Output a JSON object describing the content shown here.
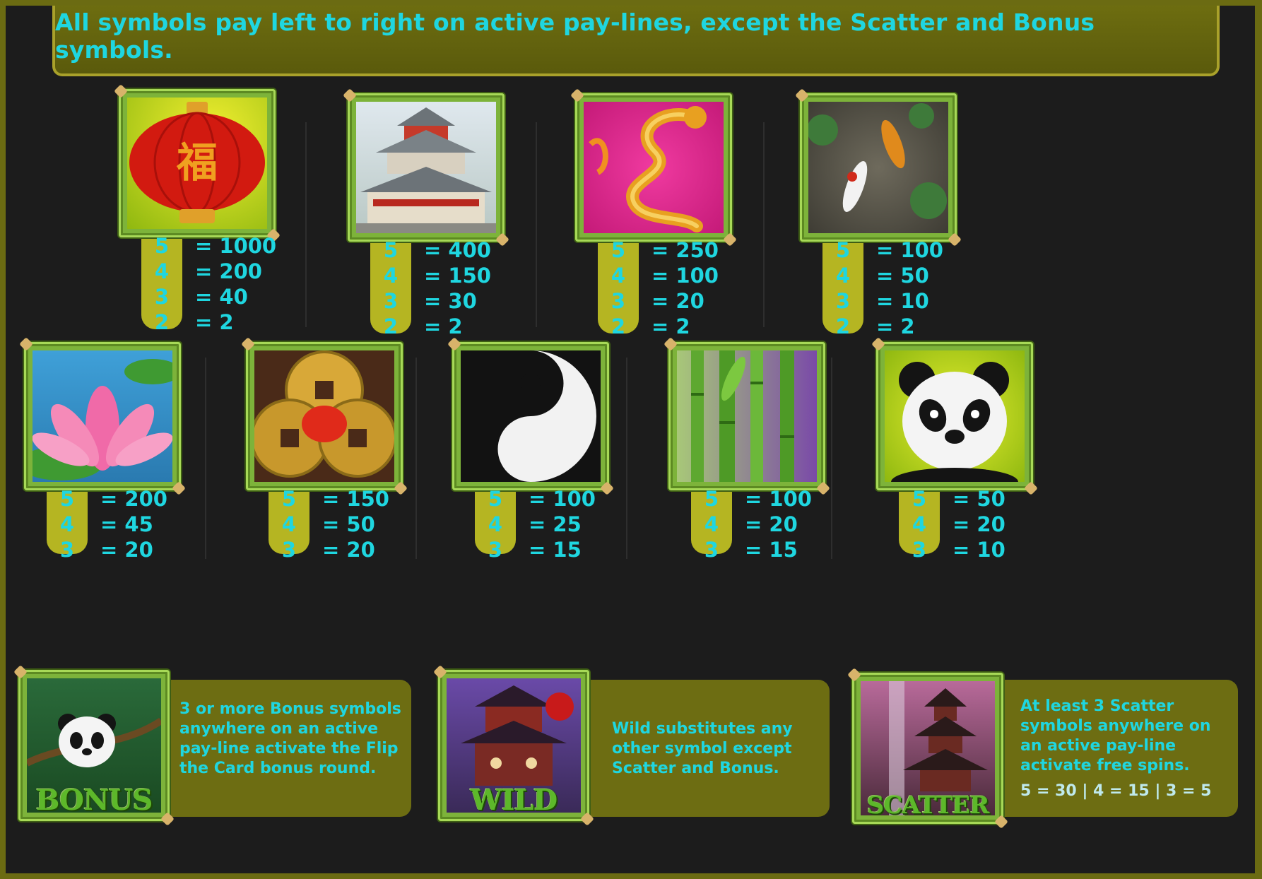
{
  "banner": {
    "text": "All symbols pay left to right on active pay-lines, except the Scatter and Bonus symbols."
  },
  "symbols": [
    {
      "name": "Lantern",
      "icon": "lantern-icon",
      "pays": [
        {
          "count": "5",
          "value": "= 1000"
        },
        {
          "count": "4",
          "value": "= 200"
        },
        {
          "count": "3",
          "value": "= 40"
        },
        {
          "count": "2",
          "value": "= 2"
        }
      ]
    },
    {
      "name": "Temple",
      "icon": "temple-icon",
      "pays": [
        {
          "count": "5",
          "value": "= 400"
        },
        {
          "count": "4",
          "value": "= 150"
        },
        {
          "count": "3",
          "value": "= 30"
        },
        {
          "count": "2",
          "value": "= 2"
        }
      ]
    },
    {
      "name": "Dragon",
      "icon": "dragon-icon",
      "pays": [
        {
          "count": "5",
          "value": "= 250"
        },
        {
          "count": "4",
          "value": "= 100"
        },
        {
          "count": "3",
          "value": "= 20"
        },
        {
          "count": "2",
          "value": "= 2"
        }
      ]
    },
    {
      "name": "Koi",
      "icon": "koi-fish-icon",
      "pays": [
        {
          "count": "5",
          "value": "= 100"
        },
        {
          "count": "4",
          "value": "= 50"
        },
        {
          "count": "3",
          "value": "= 10"
        },
        {
          "count": "2",
          "value": "= 2"
        }
      ]
    },
    {
      "name": "Lotus",
      "icon": "lotus-flower-icon",
      "pays": [
        {
          "count": "5",
          "value": "= 200"
        },
        {
          "count": "4",
          "value": "= 45"
        },
        {
          "count": "3",
          "value": "= 20"
        }
      ]
    },
    {
      "name": "Coins",
      "icon": "chinese-coins-icon",
      "pays": [
        {
          "count": "5",
          "value": "= 150"
        },
        {
          "count": "4",
          "value": "= 50"
        },
        {
          "count": "3",
          "value": "= 20"
        }
      ]
    },
    {
      "name": "Yin Yang",
      "icon": "yin-yang-icon",
      "pays": [
        {
          "count": "5",
          "value": "= 100"
        },
        {
          "count": "4",
          "value": "= 25"
        },
        {
          "count": "3",
          "value": "= 15"
        }
      ]
    },
    {
      "name": "Bamboo",
      "icon": "bamboo-icon",
      "pays": [
        {
          "count": "5",
          "value": "= 100"
        },
        {
          "count": "4",
          "value": "= 20"
        },
        {
          "count": "3",
          "value": "= 15"
        }
      ]
    },
    {
      "name": "Panda",
      "icon": "panda-icon",
      "pays": [
        {
          "count": "5",
          "value": "= 50"
        },
        {
          "count": "4",
          "value": "= 20"
        },
        {
          "count": "3",
          "value": "= 10"
        }
      ]
    }
  ],
  "specials": {
    "bonus": {
      "label": "BONUS",
      "text": "3 or more Bonus symbols anywhere on an active pay-line activate the Flip the Card bonus round."
    },
    "wild": {
      "label": "WILD",
      "text": "Wild substitutes any other symbol except Scatter and Bonus."
    },
    "scatter": {
      "label": "SCATTER",
      "text": "At least 3 Scatter symbols anywhere on an active pay-line activate free spins.",
      "pays": "5 = 30 | 4 = 15 | 3 = 5"
    }
  },
  "colors": {
    "accent_text": "#1fd6e0",
    "panel": "#6d6d12",
    "tab": "#b5b522",
    "background": "#1c1c1c",
    "bamboo": "#7db33a"
  }
}
